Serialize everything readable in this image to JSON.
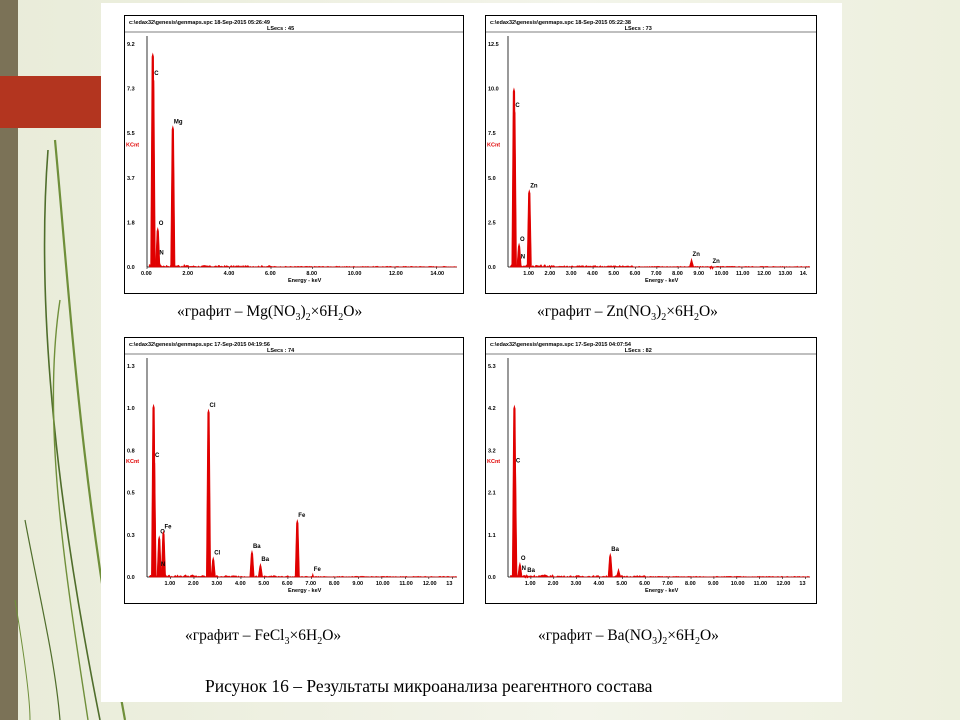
{
  "figure_caption": "Рисунок 16 – Результаты микроанализа реагентного состава",
  "panels": [
    {
      "header_line1": "c:\\edax32\\genesis\\genmaps.spc   18-Sep-2015 05:26:49",
      "header_line2": "LSecs : 45",
      "caption_prefix": "«графит – Mg(NO",
      "caption_parts": [
        "«графит – Mg(NO",
        "3",
        ")",
        "2",
        "×6H",
        "2",
        "O»"
      ]
    },
    {
      "header_line1": "c:\\edax32\\genesis\\genmaps.spc   18-Sep-2015 05:22:38",
      "header_line2": "LSecs : 73",
      "caption_parts": [
        "«графит – Zn(NO",
        "3",
        ")",
        "2",
        "×6H",
        "2",
        "O»"
      ]
    },
    {
      "header_line1": "c:\\edax32\\genesis\\genmaps.spc   17-Sep-2015 04:19:56",
      "header_line2": "LSecs : 74",
      "caption_parts": [
        "«графит – FeCl",
        "3",
        "×6H",
        "2",
        "O»"
      ]
    },
    {
      "header_line1": "c:\\edax32\\genesis\\genmaps.spc   17-Sep-2015 04:07:54",
      "header_line2": "LSecs : 82",
      "caption_parts": [
        "«графит – Ba(NO",
        "3",
        ")",
        "2",
        "×6H",
        "2",
        "O»"
      ]
    }
  ],
  "chart_data": [
    {
      "type": "line",
      "xlabel": "Energy - keV",
      "ylabel": "KCnt",
      "y_ticks": [
        "9.2",
        "7.3",
        "5.5",
        "3.7",
        "1.8",
        "0.0"
      ],
      "ylim": [
        0,
        9.2
      ],
      "x_ticks": [
        "0.00",
        "2.00",
        "4.00",
        "6.00",
        "8.00",
        "10.00",
        "12.00",
        "14.00"
      ],
      "xlim": [
        0,
        15
      ],
      "peaks": [
        {
          "x": 0.28,
          "y": 8.8,
          "label": ""
        },
        {
          "x": 0.3,
          "y": 7.8,
          "label": "C"
        },
        {
          "x": 0.52,
          "y": 1.6,
          "label": "O"
        },
        {
          "x": 0.55,
          "y": 0.4,
          "label": "N"
        },
        {
          "x": 1.25,
          "y": 5.8,
          "label": "Mg"
        }
      ],
      "series_color": "#e00000"
    },
    {
      "type": "line",
      "xlabel": "Energy - keV",
      "ylabel": "KCnt",
      "y_ticks": [
        "12.5",
        "10.0",
        "7.5",
        "5.0",
        "2.5",
        "0.0"
      ],
      "ylim": [
        0,
        12.5
      ],
      "x_ticks": [
        "1.00",
        "2.00",
        "3.00",
        "4.00",
        "5.00",
        "6.00",
        "7.00",
        "8.00",
        "9.00",
        "10.00",
        "11.00",
        "12.00",
        "13.00",
        "14."
      ],
      "xlim": [
        0,
        14.2
      ],
      "peaks": [
        {
          "x": 0.28,
          "y": 10.0,
          "label": ""
        },
        {
          "x": 0.3,
          "y": 8.8,
          "label": "C"
        },
        {
          "x": 0.52,
          "y": 1.3,
          "label": "O"
        },
        {
          "x": 0.55,
          "y": 0.3,
          "label": "N"
        },
        {
          "x": 1.0,
          "y": 4.3,
          "label": "Zn"
        },
        {
          "x": 8.63,
          "y": 0.45,
          "label": "Zn"
        },
        {
          "x": 9.57,
          "y": 0.05,
          "label": "Zn"
        }
      ],
      "series_color": "#e00000"
    },
    {
      "type": "line",
      "xlabel": "Energy - keV",
      "ylabel": "KCnt",
      "y_ticks": [
        "1.3",
        "1.0",
        "0.8",
        "0.5",
        "0.3",
        "0.0"
      ],
      "ylim": [
        0,
        1.3
      ],
      "x_ticks": [
        "1.00",
        "2.00",
        "3.00",
        "4.00",
        "5.00",
        "6.00",
        "7.00",
        "8.00",
        "9.00",
        "10.00",
        "11.00",
        "12.00",
        "13"
      ],
      "xlim": [
        0,
        13.2
      ],
      "peaks": [
        {
          "x": 0.28,
          "y": 1.06,
          "label": ""
        },
        {
          "x": 0.3,
          "y": 0.72,
          "label": "C"
        },
        {
          "x": 0.52,
          "y": 0.25,
          "label": "O"
        },
        {
          "x": 0.7,
          "y": 0.28,
          "label": "Fe"
        },
        {
          "x": 0.55,
          "y": 0.05,
          "label": "N"
        },
        {
          "x": 2.62,
          "y": 1.03,
          "label": "Cl"
        },
        {
          "x": 2.82,
          "y": 0.12,
          "label": "Cl"
        },
        {
          "x": 4.47,
          "y": 0.16,
          "label": "Ba"
        },
        {
          "x": 4.83,
          "y": 0.08,
          "label": "Ba"
        },
        {
          "x": 6.4,
          "y": 0.35,
          "label": "Fe"
        },
        {
          "x": 7.06,
          "y": 0.02,
          "label": "Fe"
        }
      ],
      "series_color": "#e00000"
    },
    {
      "type": "line",
      "xlabel": "Energy - keV",
      "ylabel": "KCnt",
      "y_ticks": [
        "5.3",
        "4.2",
        "3.2",
        "2.1",
        "1.1",
        "0.0"
      ],
      "ylim": [
        0,
        5.3
      ],
      "x_ticks": [
        "1.00",
        "2.00",
        "3.00",
        "4.00",
        "5.00",
        "6.00",
        "7.00",
        "8.00",
        "9.00",
        "10.00",
        "11.00",
        "12.00",
        "13"
      ],
      "xlim": [
        0,
        13.2
      ],
      "peaks": [
        {
          "x": 0.28,
          "y": 4.3,
          "label": ""
        },
        {
          "x": 0.3,
          "y": 2.8,
          "label": "C"
        },
        {
          "x": 0.52,
          "y": 0.35,
          "label": "O"
        },
        {
          "x": 0.55,
          "y": 0.1,
          "label": "N"
        },
        {
          "x": 0.8,
          "y": 0.05,
          "label": "Ba"
        },
        {
          "x": 4.47,
          "y": 0.58,
          "label": "Ba"
        },
        {
          "x": 4.83,
          "y": 0.2,
          "label": ""
        }
      ],
      "series_color": "#e00000"
    }
  ]
}
